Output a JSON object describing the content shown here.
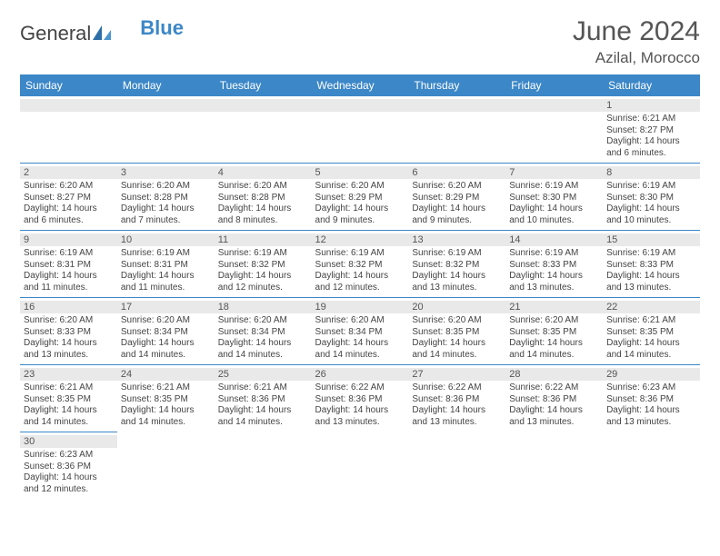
{
  "logo": {
    "general": "General",
    "blue": "Blue"
  },
  "header": {
    "month_title": "June 2024",
    "location": "Azilal, Morocco"
  },
  "colors": {
    "header_bg": "#3c87c7",
    "header_text": "#ffffff",
    "daynum_bg": "#e9e9e9",
    "border": "#3c87c7",
    "title": "#555555",
    "text": "#444444",
    "bg": "#ffffff"
  },
  "weekdays": [
    "Sunday",
    "Monday",
    "Tuesday",
    "Wednesday",
    "Thursday",
    "Friday",
    "Saturday"
  ],
  "weeks": [
    [
      null,
      null,
      null,
      null,
      null,
      null,
      {
        "n": "1",
        "sunrise": "Sunrise: 6:21 AM",
        "sunset": "Sunset: 8:27 PM",
        "day1": "Daylight: 14 hours",
        "day2": "and 6 minutes."
      }
    ],
    [
      {
        "n": "2",
        "sunrise": "Sunrise: 6:20 AM",
        "sunset": "Sunset: 8:27 PM",
        "day1": "Daylight: 14 hours",
        "day2": "and 6 minutes."
      },
      {
        "n": "3",
        "sunrise": "Sunrise: 6:20 AM",
        "sunset": "Sunset: 8:28 PM",
        "day1": "Daylight: 14 hours",
        "day2": "and 7 minutes."
      },
      {
        "n": "4",
        "sunrise": "Sunrise: 6:20 AM",
        "sunset": "Sunset: 8:28 PM",
        "day1": "Daylight: 14 hours",
        "day2": "and 8 minutes."
      },
      {
        "n": "5",
        "sunrise": "Sunrise: 6:20 AM",
        "sunset": "Sunset: 8:29 PM",
        "day1": "Daylight: 14 hours",
        "day2": "and 9 minutes."
      },
      {
        "n": "6",
        "sunrise": "Sunrise: 6:20 AM",
        "sunset": "Sunset: 8:29 PM",
        "day1": "Daylight: 14 hours",
        "day2": "and 9 minutes."
      },
      {
        "n": "7",
        "sunrise": "Sunrise: 6:19 AM",
        "sunset": "Sunset: 8:30 PM",
        "day1": "Daylight: 14 hours",
        "day2": "and 10 minutes."
      },
      {
        "n": "8",
        "sunrise": "Sunrise: 6:19 AM",
        "sunset": "Sunset: 8:30 PM",
        "day1": "Daylight: 14 hours",
        "day2": "and 10 minutes."
      }
    ],
    [
      {
        "n": "9",
        "sunrise": "Sunrise: 6:19 AM",
        "sunset": "Sunset: 8:31 PM",
        "day1": "Daylight: 14 hours",
        "day2": "and 11 minutes."
      },
      {
        "n": "10",
        "sunrise": "Sunrise: 6:19 AM",
        "sunset": "Sunset: 8:31 PM",
        "day1": "Daylight: 14 hours",
        "day2": "and 11 minutes."
      },
      {
        "n": "11",
        "sunrise": "Sunrise: 6:19 AM",
        "sunset": "Sunset: 8:32 PM",
        "day1": "Daylight: 14 hours",
        "day2": "and 12 minutes."
      },
      {
        "n": "12",
        "sunrise": "Sunrise: 6:19 AM",
        "sunset": "Sunset: 8:32 PM",
        "day1": "Daylight: 14 hours",
        "day2": "and 12 minutes."
      },
      {
        "n": "13",
        "sunrise": "Sunrise: 6:19 AM",
        "sunset": "Sunset: 8:32 PM",
        "day1": "Daylight: 14 hours",
        "day2": "and 13 minutes."
      },
      {
        "n": "14",
        "sunrise": "Sunrise: 6:19 AM",
        "sunset": "Sunset: 8:33 PM",
        "day1": "Daylight: 14 hours",
        "day2": "and 13 minutes."
      },
      {
        "n": "15",
        "sunrise": "Sunrise: 6:19 AM",
        "sunset": "Sunset: 8:33 PM",
        "day1": "Daylight: 14 hours",
        "day2": "and 13 minutes."
      }
    ],
    [
      {
        "n": "16",
        "sunrise": "Sunrise: 6:20 AM",
        "sunset": "Sunset: 8:33 PM",
        "day1": "Daylight: 14 hours",
        "day2": "and 13 minutes."
      },
      {
        "n": "17",
        "sunrise": "Sunrise: 6:20 AM",
        "sunset": "Sunset: 8:34 PM",
        "day1": "Daylight: 14 hours",
        "day2": "and 14 minutes."
      },
      {
        "n": "18",
        "sunrise": "Sunrise: 6:20 AM",
        "sunset": "Sunset: 8:34 PM",
        "day1": "Daylight: 14 hours",
        "day2": "and 14 minutes."
      },
      {
        "n": "19",
        "sunrise": "Sunrise: 6:20 AM",
        "sunset": "Sunset: 8:34 PM",
        "day1": "Daylight: 14 hours",
        "day2": "and 14 minutes."
      },
      {
        "n": "20",
        "sunrise": "Sunrise: 6:20 AM",
        "sunset": "Sunset: 8:35 PM",
        "day1": "Daylight: 14 hours",
        "day2": "and 14 minutes."
      },
      {
        "n": "21",
        "sunrise": "Sunrise: 6:20 AM",
        "sunset": "Sunset: 8:35 PM",
        "day1": "Daylight: 14 hours",
        "day2": "and 14 minutes."
      },
      {
        "n": "22",
        "sunrise": "Sunrise: 6:21 AM",
        "sunset": "Sunset: 8:35 PM",
        "day1": "Daylight: 14 hours",
        "day2": "and 14 minutes."
      }
    ],
    [
      {
        "n": "23",
        "sunrise": "Sunrise: 6:21 AM",
        "sunset": "Sunset: 8:35 PM",
        "day1": "Daylight: 14 hours",
        "day2": "and 14 minutes."
      },
      {
        "n": "24",
        "sunrise": "Sunrise: 6:21 AM",
        "sunset": "Sunset: 8:35 PM",
        "day1": "Daylight: 14 hours",
        "day2": "and 14 minutes."
      },
      {
        "n": "25",
        "sunrise": "Sunrise: 6:21 AM",
        "sunset": "Sunset: 8:36 PM",
        "day1": "Daylight: 14 hours",
        "day2": "and 14 minutes."
      },
      {
        "n": "26",
        "sunrise": "Sunrise: 6:22 AM",
        "sunset": "Sunset: 8:36 PM",
        "day1": "Daylight: 14 hours",
        "day2": "and 13 minutes."
      },
      {
        "n": "27",
        "sunrise": "Sunrise: 6:22 AM",
        "sunset": "Sunset: 8:36 PM",
        "day1": "Daylight: 14 hours",
        "day2": "and 13 minutes."
      },
      {
        "n": "28",
        "sunrise": "Sunrise: 6:22 AM",
        "sunset": "Sunset: 8:36 PM",
        "day1": "Daylight: 14 hours",
        "day2": "and 13 minutes."
      },
      {
        "n": "29",
        "sunrise": "Sunrise: 6:23 AM",
        "sunset": "Sunset: 8:36 PM",
        "day1": "Daylight: 14 hours",
        "day2": "and 13 minutes."
      }
    ],
    [
      {
        "n": "30",
        "sunrise": "Sunrise: 6:23 AM",
        "sunset": "Sunset: 8:36 PM",
        "day1": "Daylight: 14 hours",
        "day2": "and 12 minutes."
      },
      null,
      null,
      null,
      null,
      null,
      null
    ]
  ]
}
